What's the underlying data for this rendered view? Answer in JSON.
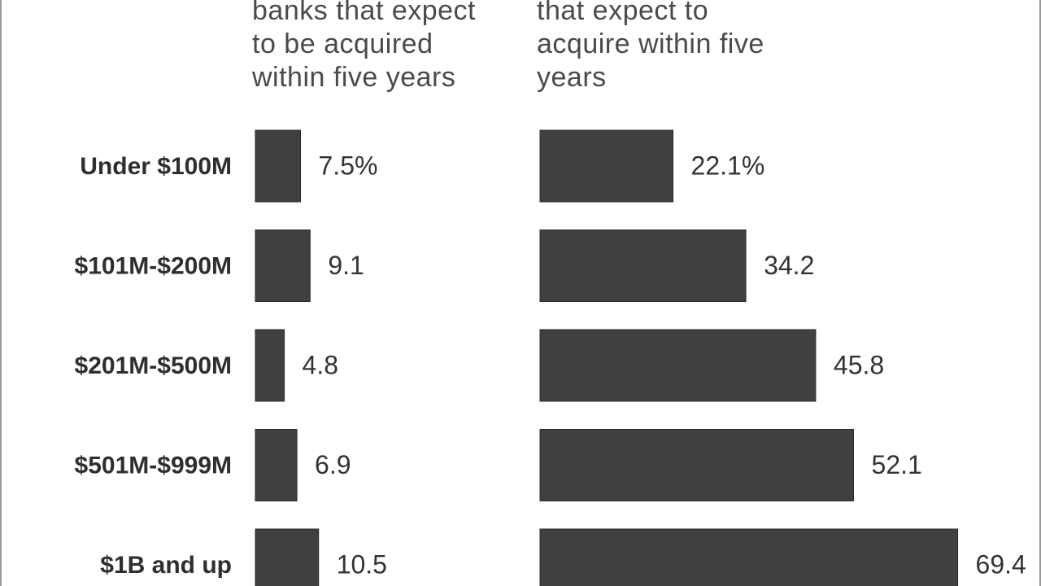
{
  "chart_data": [
    {
      "type": "hbar",
      "title_lines": [
        "banks that expect",
        "to be acquired",
        "within five years"
      ],
      "categories": [
        "Under $100M",
        "$101M-$200M",
        "$201M-$500M",
        "$501M-$999M",
        "$1B and up"
      ],
      "values": [
        7.5,
        9.1,
        4.8,
        6.9,
        10.5
      ],
      "value_labels": [
        "7.5%",
        "9.1",
        "4.8",
        "6.9",
        "10.5"
      ],
      "color": "#404040"
    },
    {
      "type": "hbar",
      "title_lines": [
        "that expect to",
        "acquire within five",
        "years"
      ],
      "values": [
        22.1,
        34.2,
        45.8,
        52.1,
        69.4
      ],
      "value_labels": [
        "22.1%",
        "34.2",
        "45.8",
        "52.1",
        "69.4"
      ],
      "color": "#404040"
    }
  ]
}
